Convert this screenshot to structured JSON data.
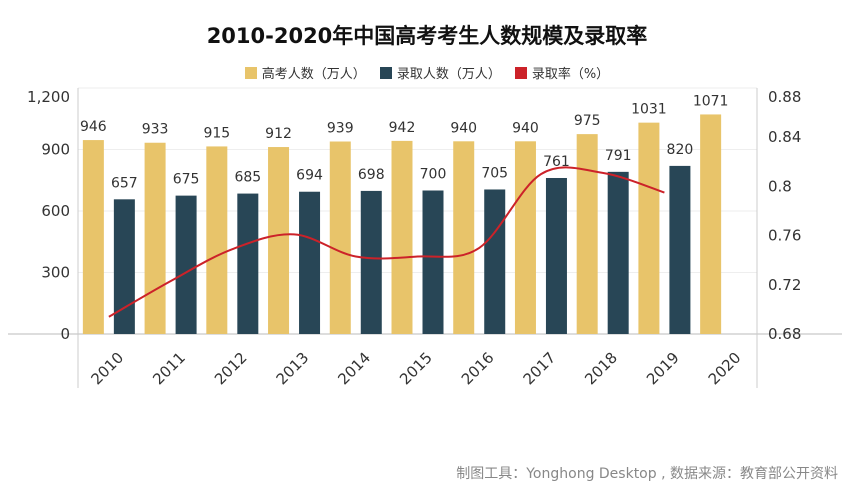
{
  "title": "2010-2020年中国高考考生人数规模及录取率",
  "footer": "制图工具：Yonghong Desktop , 数据来源：教育部公开资料",
  "colors": {
    "applicants": "#E8C46A",
    "admitted": "#284656",
    "rate": "#CC2229"
  },
  "legend": [
    {
      "label": "高考人数（万人）",
      "color_key": "applicants"
    },
    {
      "label": "录取人数（万人）",
      "color_key": "admitted"
    },
    {
      "label": "录取率（%）",
      "color_key": "rate"
    }
  ],
  "chart_data": {
    "type": "bar",
    "categories": [
      "2010",
      "2011",
      "2012",
      "2013",
      "2014",
      "2015",
      "2016",
      "2017",
      "2018",
      "2019",
      "2020"
    ],
    "series": [
      {
        "name": "高考人数（万人）",
        "type": "bar",
        "axis": "left",
        "values": [
          946,
          933,
          915,
          912,
          939,
          942,
          940,
          940,
          975,
          1031,
          1071
        ]
      },
      {
        "name": "录取人数（万人）",
        "type": "bar",
        "axis": "left",
        "values": [
          657,
          675,
          685,
          694,
          698,
          700,
          705,
          761,
          791,
          820,
          null
        ]
      },
      {
        "name": "录取率（%）",
        "type": "line",
        "axis": "right",
        "values": [
          0.694,
          0.723,
          0.749,
          0.761,
          0.743,
          0.743,
          0.75,
          0.81,
          0.811,
          0.795,
          null
        ]
      }
    ],
    "y_left": {
      "ticks": [
        "0",
        "300",
        "600",
        "900",
        "1,200"
      ],
      "range": [
        0,
        1200
      ]
    },
    "y_right": {
      "ticks": [
        "0.68",
        "0.72",
        "0.76",
        "0.8",
        "0.84",
        "0.88"
      ],
      "range": [
        0.68,
        0.88
      ]
    },
    "legend_position": "top"
  }
}
